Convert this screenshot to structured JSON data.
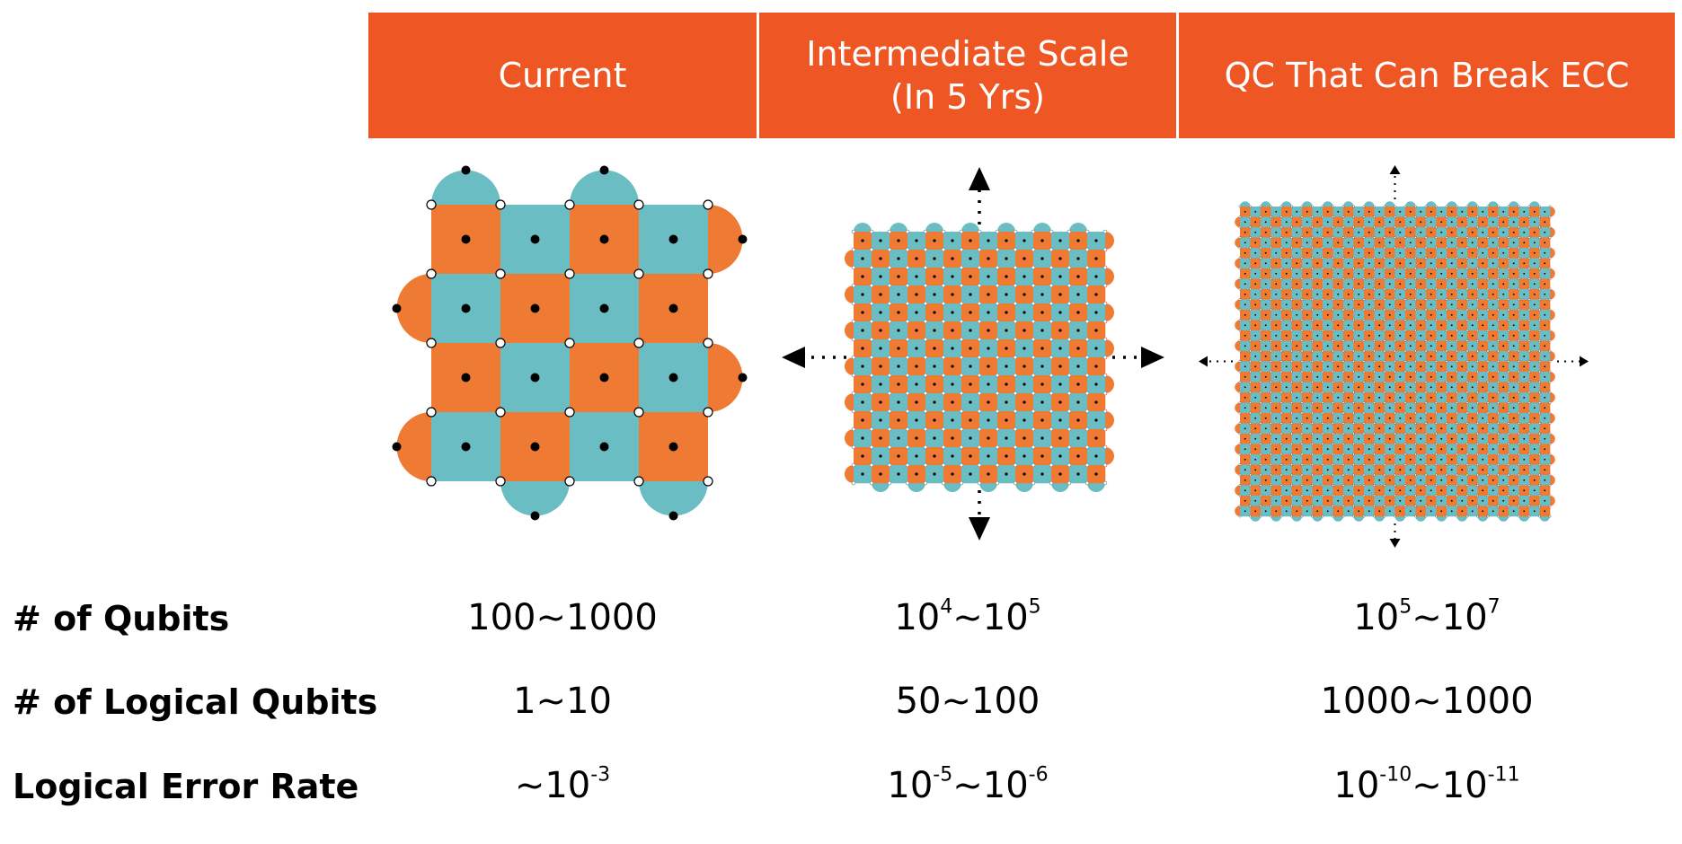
{
  "colors": {
    "orange": "#EE5624",
    "orange_tile": "#EE7A33",
    "teal": "#6BBDC4",
    "header_text": "#ffffff"
  },
  "headers": [
    {
      "lines": [
        "Current"
      ]
    },
    {
      "lines": [
        "Intermediate Scale",
        "(In 5 Yrs)"
      ]
    },
    {
      "lines": [
        "QC That Can Break ECC"
      ]
    }
  ],
  "diagrams": [
    {
      "name": "current-surface-code",
      "grid": 4
    },
    {
      "name": "intermediate-surface-code",
      "grid": 14,
      "arrows": [
        "up",
        "down",
        "left",
        "right"
      ]
    },
    {
      "name": "qc-break-ecc-surface-code",
      "grid": 30,
      "arrows": [
        "up",
        "down",
        "left",
        "right"
      ]
    }
  ],
  "rows": [
    {
      "label": "# of Qubits",
      "cells": [
        [
          {
            "t": "100~1000"
          }
        ],
        [
          {
            "t": "10"
          },
          {
            "s": "4"
          },
          {
            "t": "~10"
          },
          {
            "s": "5"
          }
        ],
        [
          {
            "t": "10"
          },
          {
            "s": "5"
          },
          {
            "t": "~10"
          },
          {
            "s": "7"
          }
        ]
      ]
    },
    {
      "label": "# of Logical Qubits",
      "cells": [
        [
          {
            "t": "1~10"
          }
        ],
        [
          {
            "t": "50~100"
          }
        ],
        [
          {
            "t": "1000~1000"
          }
        ]
      ]
    },
    {
      "label": "Logical Error Rate",
      "cells": [
        [
          {
            "t": "~10"
          },
          {
            "s": "-3"
          }
        ],
        [
          {
            "t": "10"
          },
          {
            "s": "-5"
          },
          {
            "t": "~10"
          },
          {
            "s": "-6"
          }
        ],
        [
          {
            "t": "10"
          },
          {
            "s": "-10"
          },
          {
            "t": "~10"
          },
          {
            "s": "-11"
          }
        ]
      ]
    }
  ]
}
